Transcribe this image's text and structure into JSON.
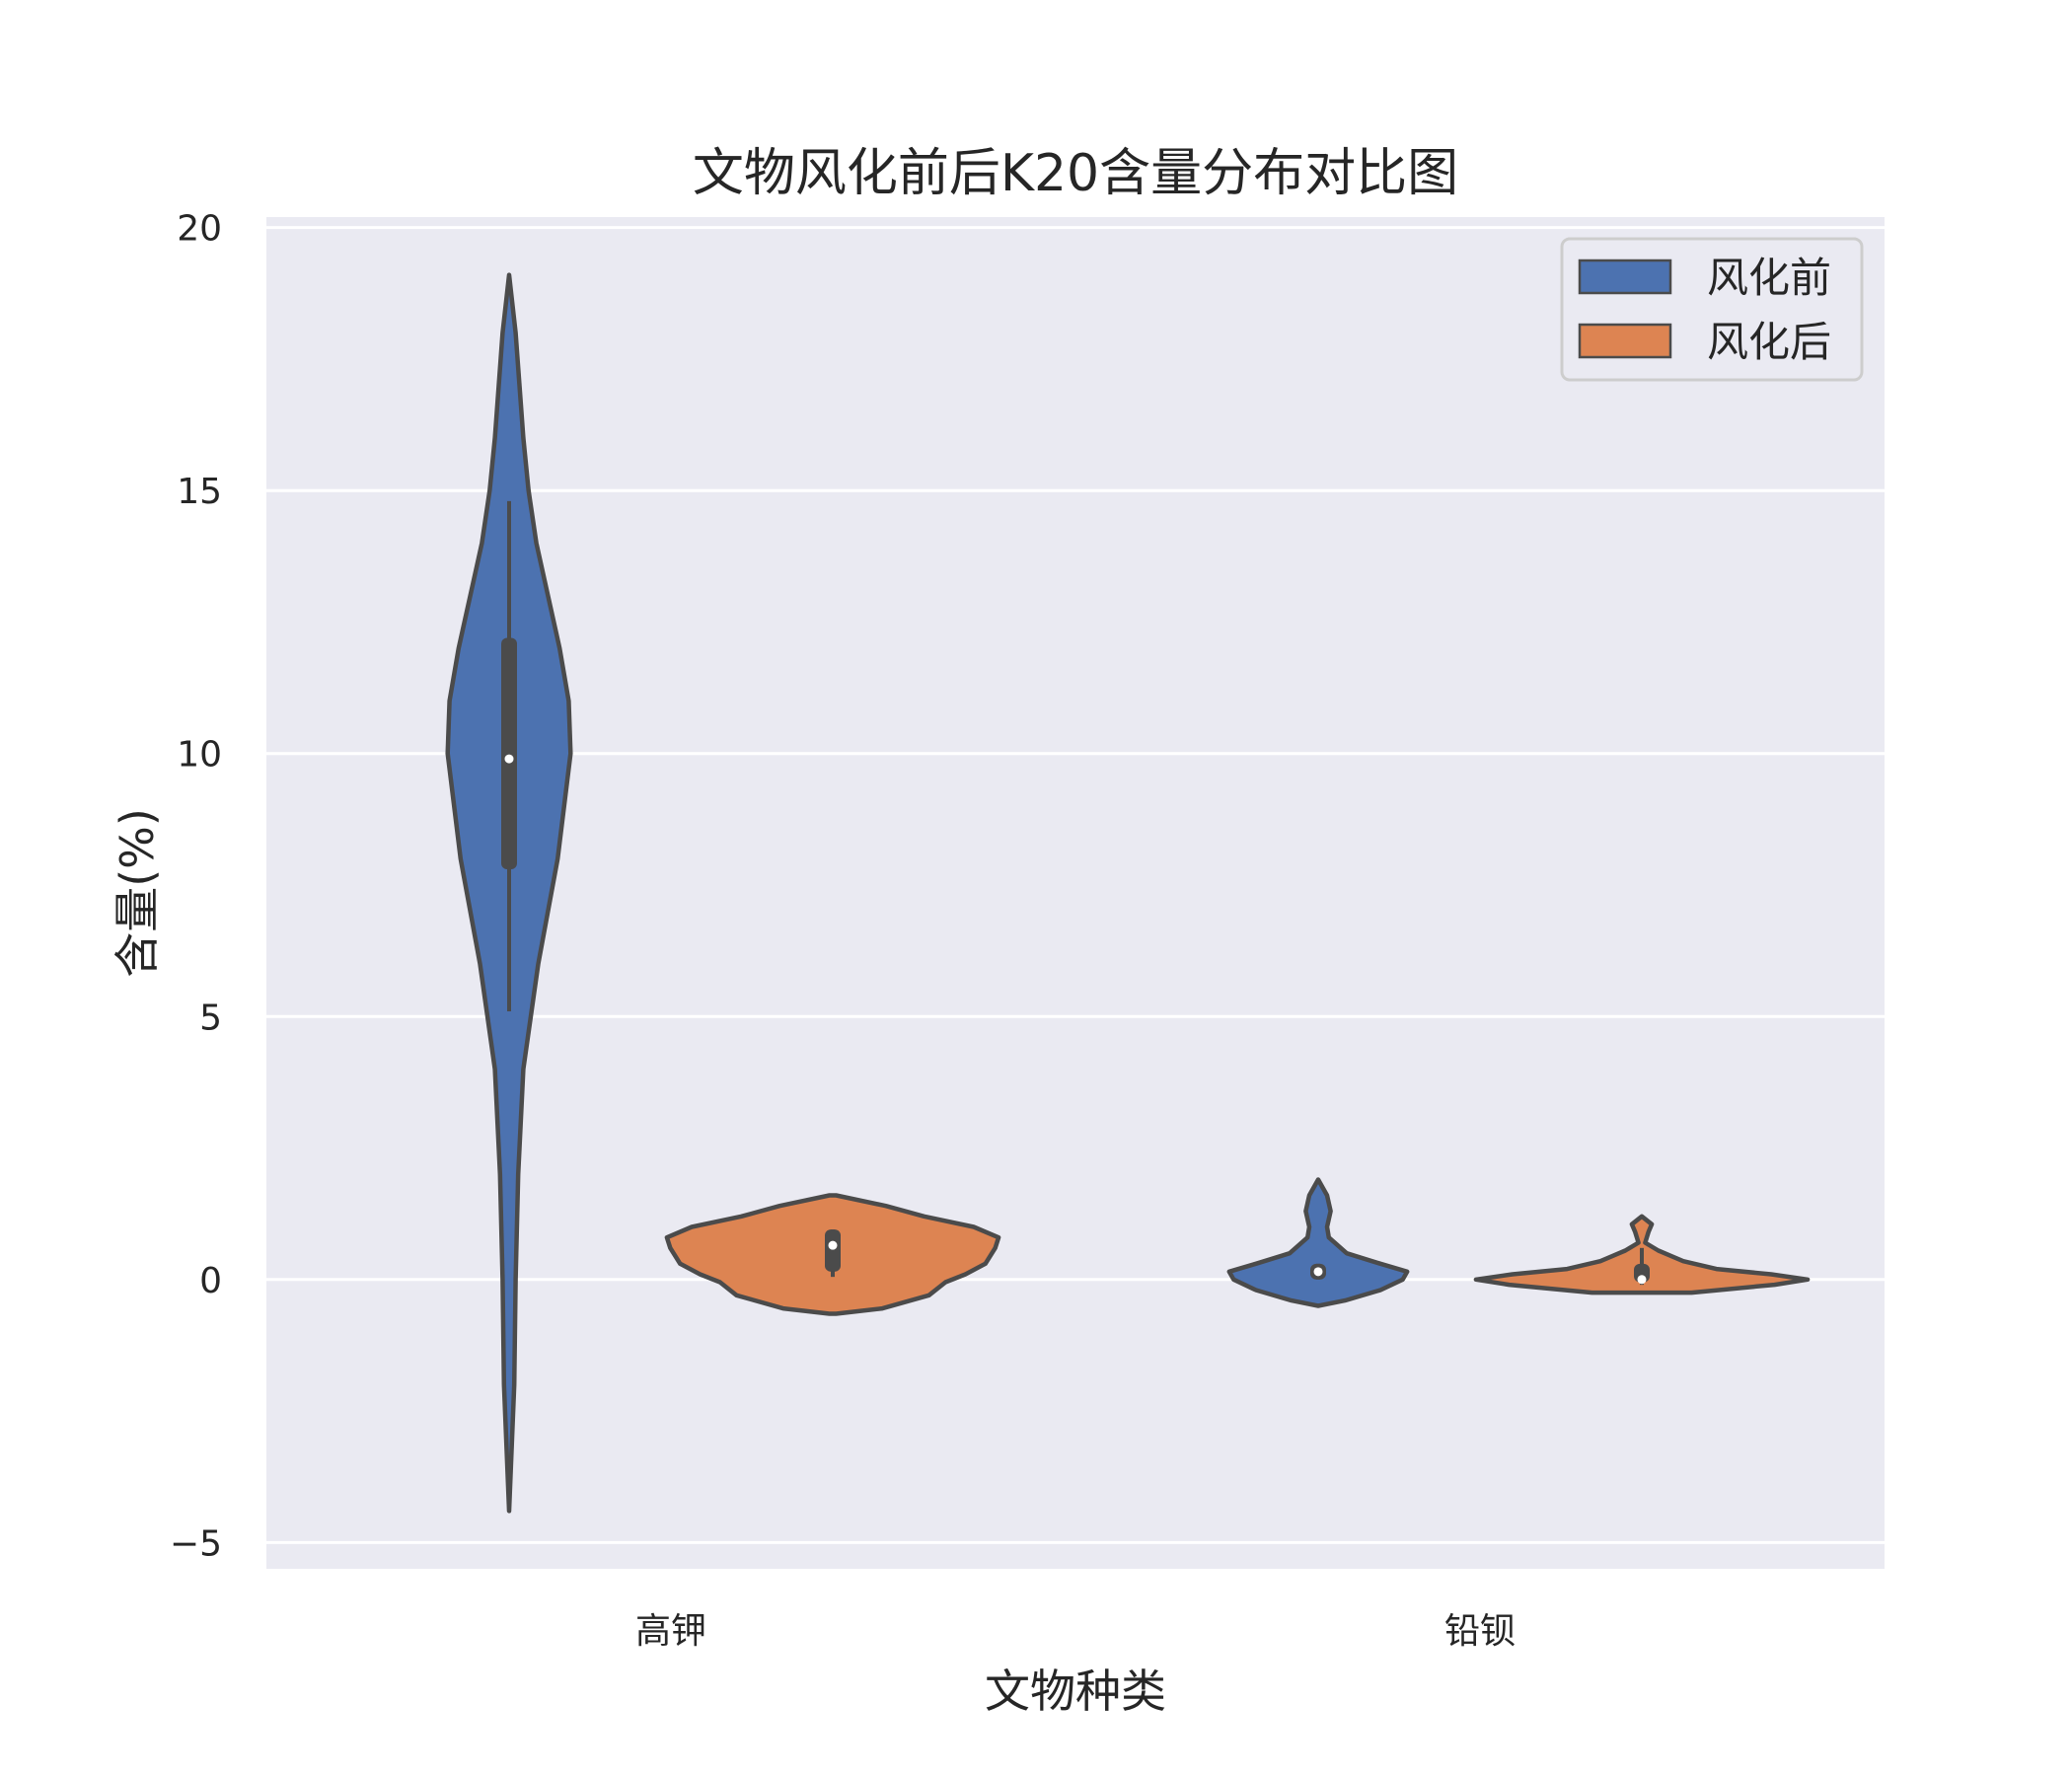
{
  "chart_data": {
    "type": "violin",
    "title": "文物风化前后K20含量分布对比图",
    "xlabel": "文物种类",
    "ylabel": "含量(%)",
    "ylim": [
      -5.5,
      20.2
    ],
    "yticks": [
      -5,
      0,
      5,
      10,
      15,
      20
    ],
    "categories": [
      "高钾",
      "铅钡"
    ],
    "grid": true,
    "legend_position": "top-right",
    "colors": {
      "background": "#eaeaf2",
      "grid": "#ffffff",
      "outline": "#4b4b4b"
    },
    "series": [
      {
        "name": "风化前",
        "color": "#4c72b0",
        "violins": [
          {
            "category": "高钾",
            "median": 9.9,
            "q1": 7.8,
            "q3": 12.2,
            "whisker_low": 5.1,
            "whisker_high": 14.8,
            "min": -4.4,
            "max": 19.1,
            "max_halfwidth": 0.08,
            "density": [
              [
                -4.4,
                0
              ],
              [
                -2,
                0.08
              ],
              [
                0,
                0.1
              ],
              [
                2,
                0.14
              ],
              [
                4,
                0.22
              ],
              [
                6,
                0.45
              ],
              [
                8,
                0.75
              ],
              [
                10,
                0.95
              ],
              [
                11,
                0.92
              ],
              [
                12,
                0.78
              ],
              [
                13,
                0.6
              ],
              [
                14,
                0.42
              ],
              [
                15,
                0.3
              ],
              [
                16,
                0.22
              ],
              [
                17,
                0.16
              ],
              [
                18,
                0.1
              ],
              [
                19.1,
                0
              ]
            ]
          },
          {
            "category": "铅钡",
            "median": 0.15,
            "q1": 0.0,
            "q3": 0.3,
            "whisker_low": 0.0,
            "whisker_high": 0.3,
            "min": -0.5,
            "max": 1.9,
            "max_halfwidth": 0.11,
            "density": [
              [
                -0.5,
                0
              ],
              [
                -0.4,
                0.3
              ],
              [
                -0.2,
                0.7
              ],
              [
                0,
                0.95
              ],
              [
                0.15,
                1
              ],
              [
                0.3,
                0.7
              ],
              [
                0.5,
                0.32
              ],
              [
                0.8,
                0.12
              ],
              [
                1.0,
                0.1
              ],
              [
                1.3,
                0.14
              ],
              [
                1.6,
                0.1
              ],
              [
                1.9,
                0
              ]
            ]
          }
        ]
      },
      {
        "name": "风化后",
        "color": "#dd8452",
        "violins": [
          {
            "category": "高钾",
            "median": 0.65,
            "q1": 0.15,
            "q3": 0.95,
            "whisker_low": 0.05,
            "whisker_high": 0.95,
            "min": -0.65,
            "max": 1.6,
            "max_halfwidth": 0.205,
            "density": [
              [
                -0.65,
                0.02
              ],
              [
                -0.55,
                0.3
              ],
              [
                -0.3,
                0.58
              ],
              [
                -0.05,
                0.68
              ],
              [
                0.1,
                0.8
              ],
              [
                0.3,
                0.92
              ],
              [
                0.6,
                0.98
              ],
              [
                0.8,
                1
              ],
              [
                1.0,
                0.85
              ],
              [
                1.2,
                0.55
              ],
              [
                1.4,
                0.32
              ],
              [
                1.6,
                0.02
              ]
            ]
          },
          {
            "category": "铅钡",
            "median": 0.0,
            "q1": -0.05,
            "q3": 0.3,
            "whisker_low": -0.1,
            "whisker_high": 0.6,
            "min": -0.25,
            "max": 1.2,
            "max_halfwidth": 0.205,
            "density": [
              [
                -0.25,
                0.3
              ],
              [
                -0.1,
                0.8
              ],
              [
                0,
                1
              ],
              [
                0.1,
                0.78
              ],
              [
                0.2,
                0.45
              ],
              [
                0.35,
                0.25
              ],
              [
                0.55,
                0.1
              ],
              [
                0.7,
                0.02
              ],
              [
                0.9,
                0.04
              ],
              [
                1.05,
                0.06
              ],
              [
                1.2,
                0
              ]
            ]
          }
        ]
      }
    ]
  }
}
